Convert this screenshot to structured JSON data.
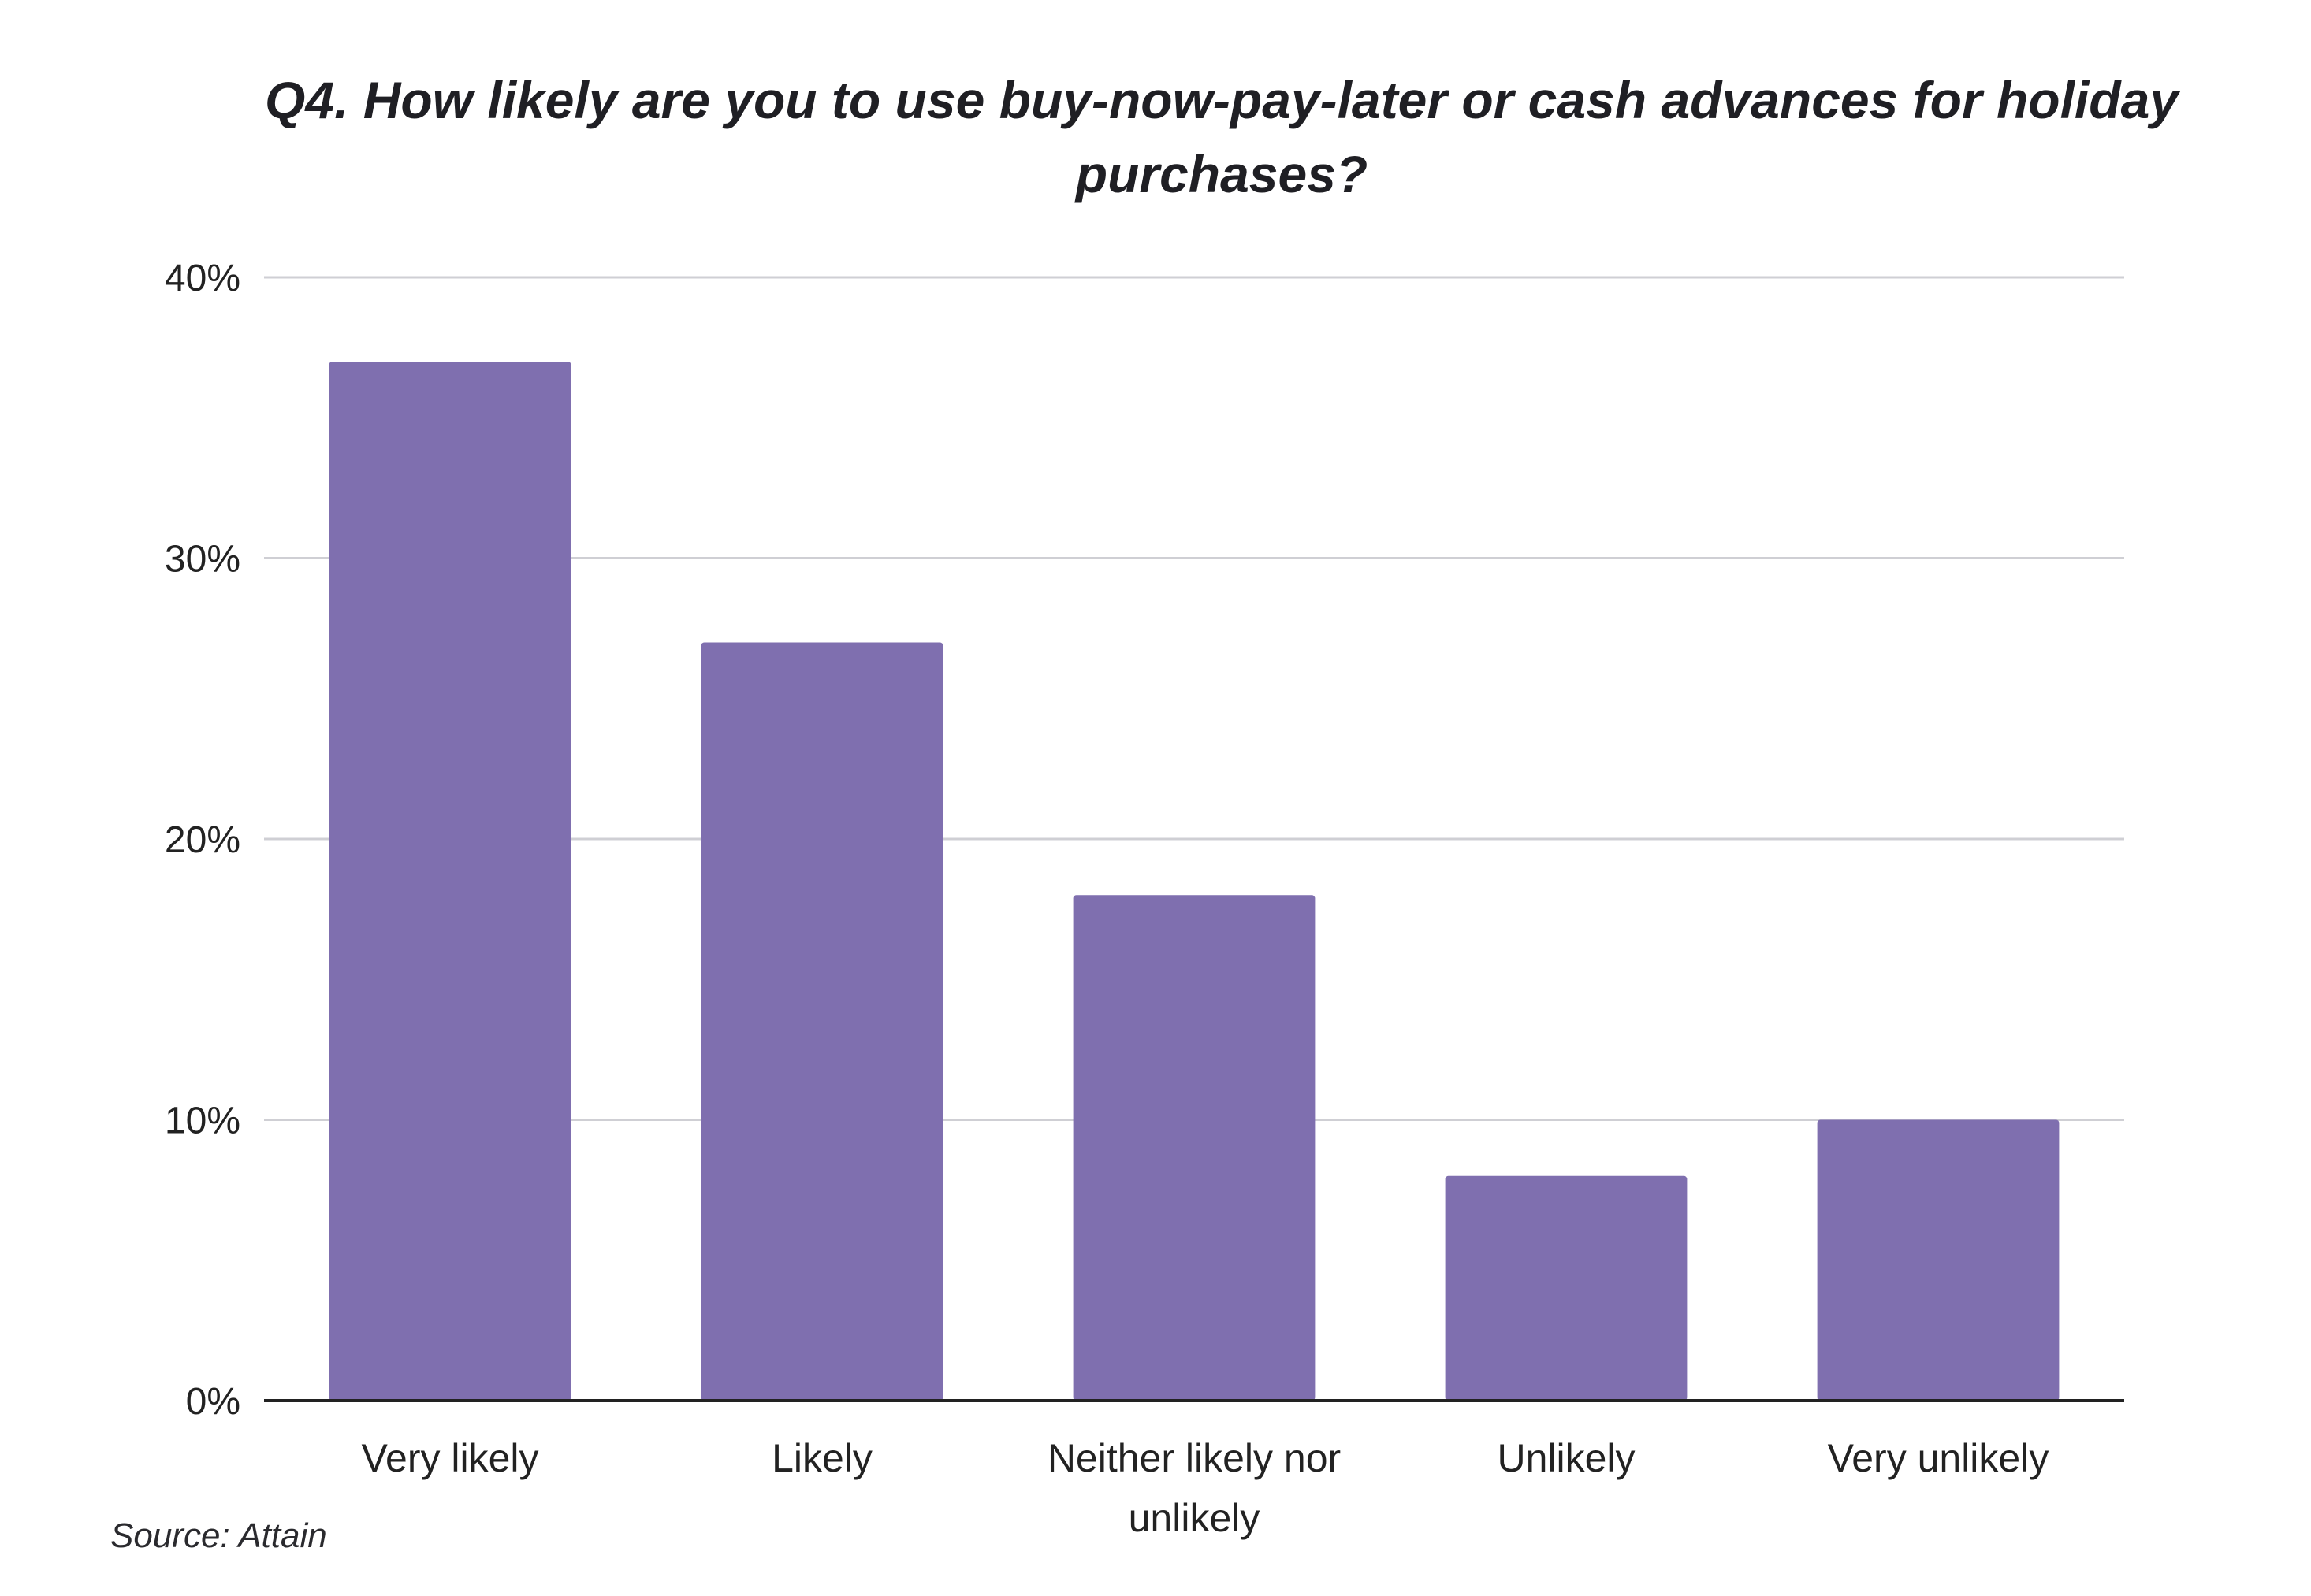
{
  "chart_data": {
    "type": "bar",
    "title": "Q4. How likely are you to use buy-now-pay-later or cash advances for holiday purchases?",
    "xlabel": "",
    "ylabel": "",
    "categories": [
      "Very likely",
      "Likely",
      "Neither likely nor unlikely",
      "Unlikely",
      "Very unlikely"
    ],
    "values": [
      37,
      27,
      18,
      8,
      10
    ],
    "ylim": [
      0,
      40
    ],
    "yticks": [
      0,
      10,
      20,
      30,
      40
    ],
    "ytick_labels": [
      "0%",
      "10%",
      "20%",
      "30%",
      "40%"
    ],
    "grid": true,
    "legend": "none",
    "bar_color": "#7f6faf",
    "grid_color": "#cfcfd4",
    "axis_color": "#222222"
  },
  "source": "Source: Attain"
}
